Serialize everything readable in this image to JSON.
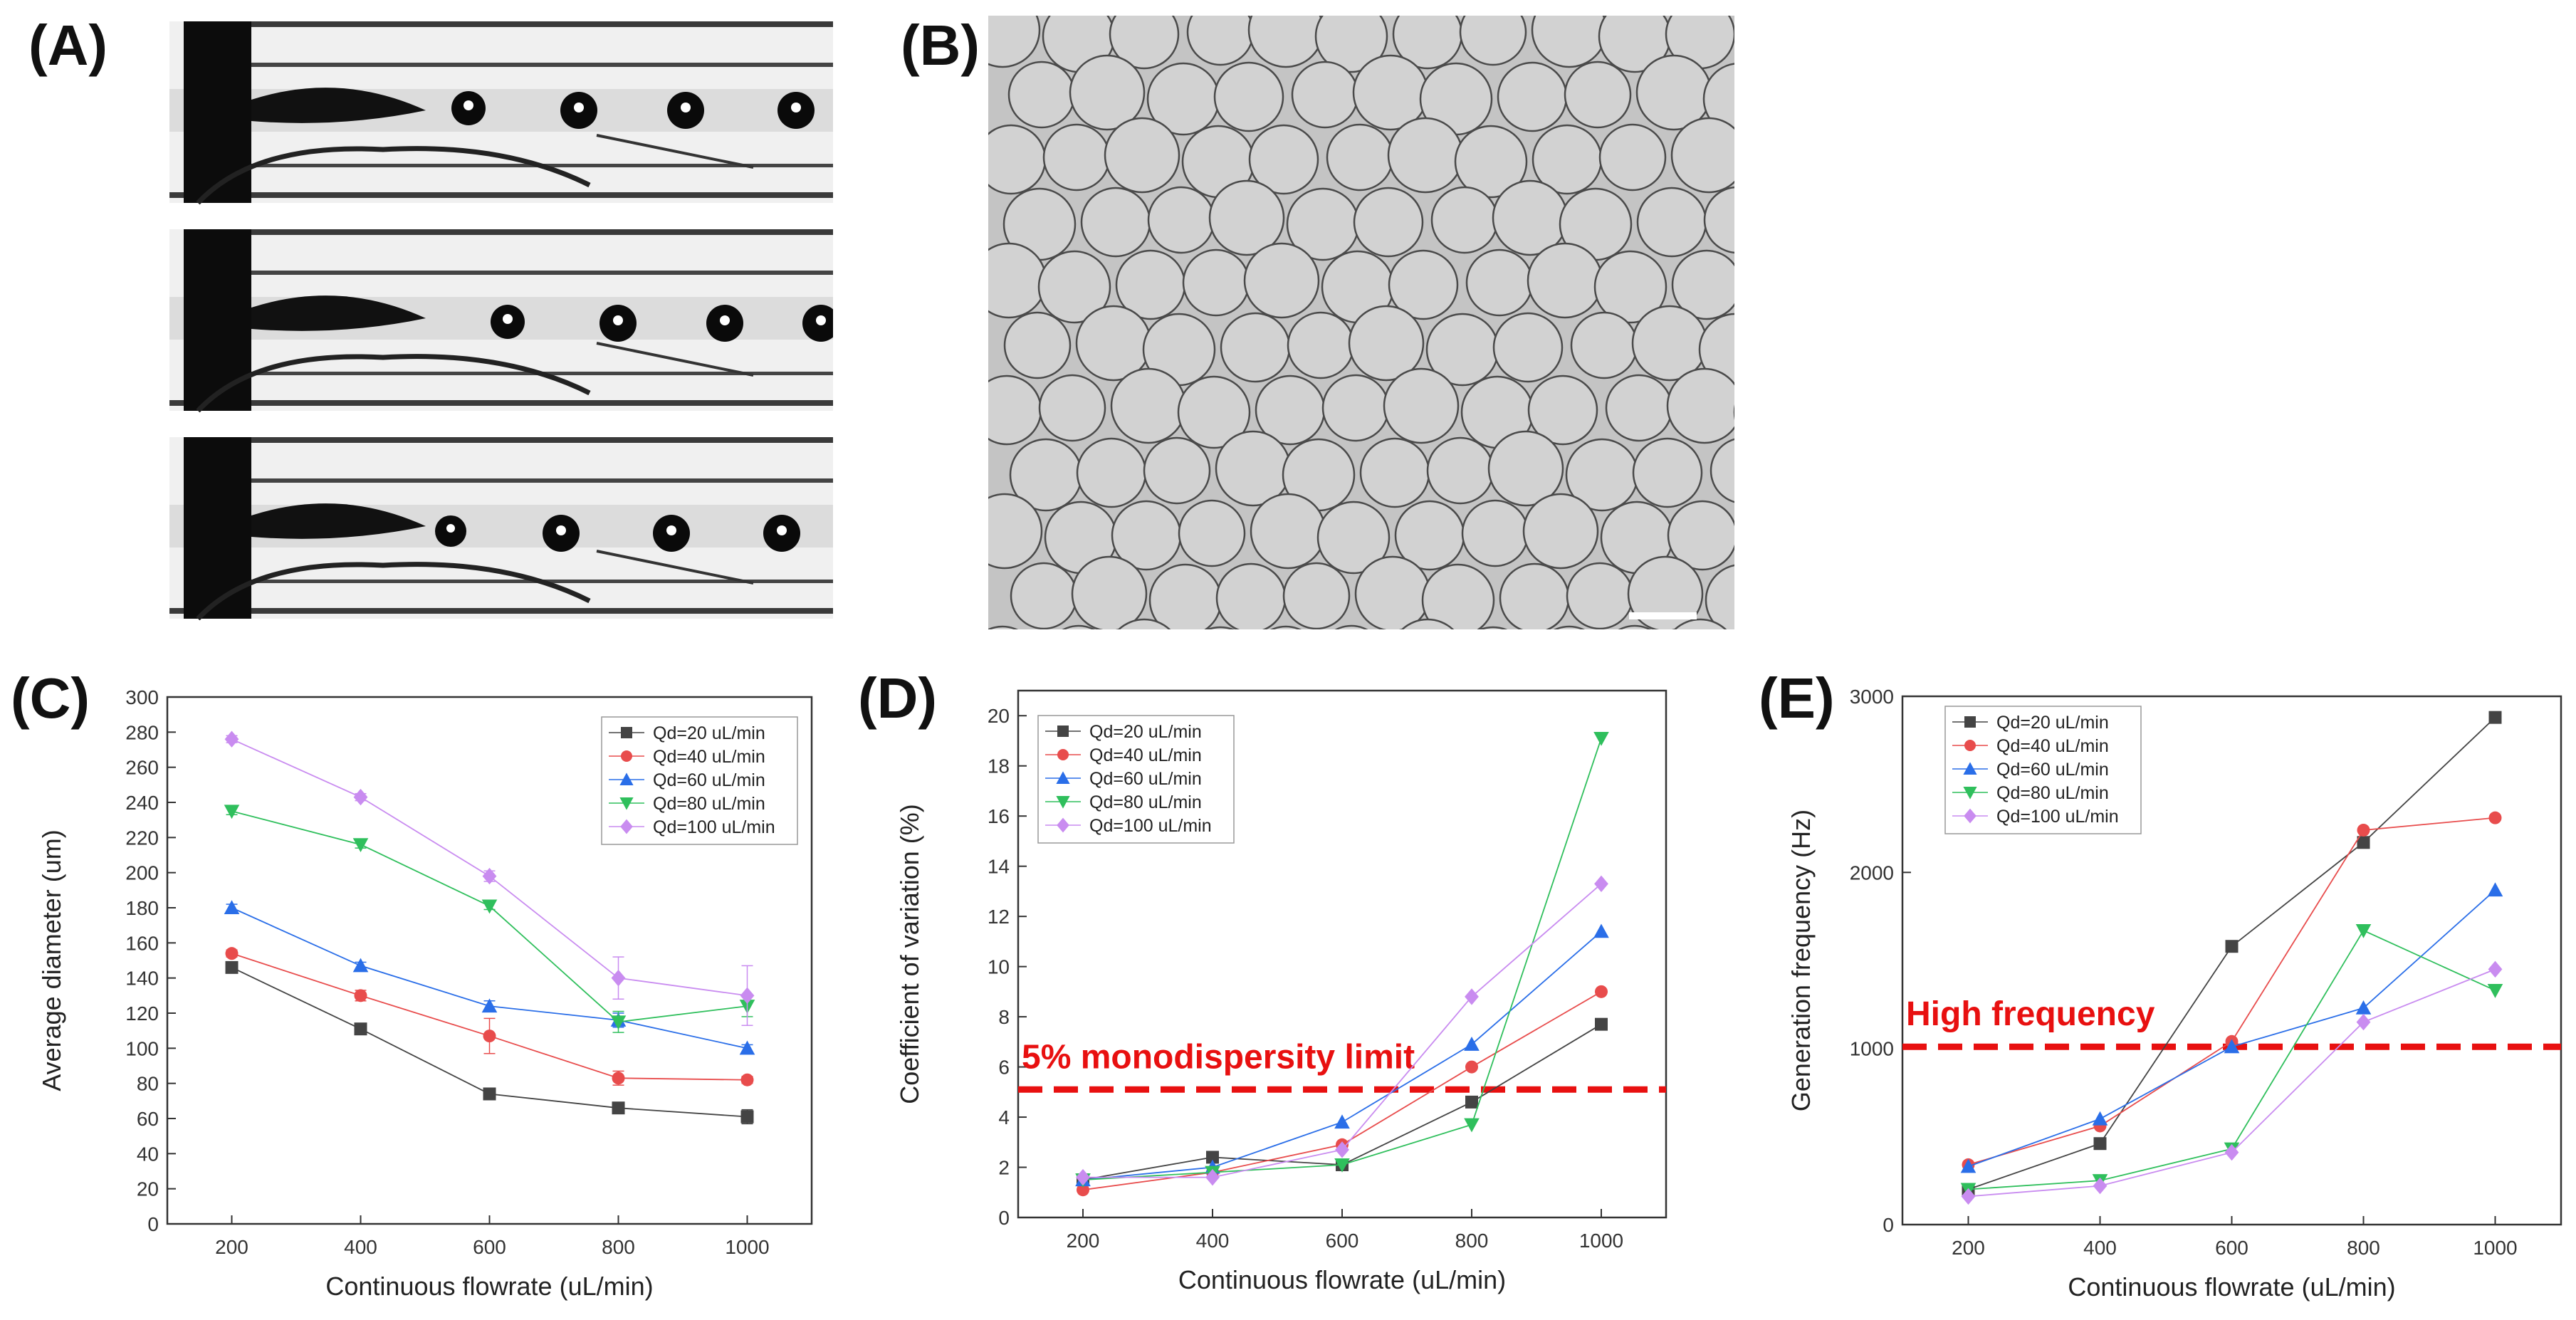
{
  "panels": {
    "a": "(A)",
    "b": "(B)",
    "c": "(C)",
    "d": "(D)",
    "e": "(E)"
  },
  "colors": {
    "qd20": "#444444",
    "qd40": "#e84c4c",
    "qd60": "#2a6ee8",
    "qd80": "#2fbf5c",
    "qd100": "#c98cf0",
    "threshold": "#e81010"
  },
  "chart_data": [
    {
      "id": "C",
      "type": "line",
      "xlabel": "Continuous flowrate (uL/min)",
      "ylabel": "Average diameter (um)",
      "categories": [
        200,
        400,
        600,
        800,
        1000
      ],
      "xlim": [
        100,
        1100
      ],
      "ylim": [
        0,
        300
      ],
      "yticks": [
        0,
        20,
        40,
        60,
        80,
        100,
        120,
        140,
        160,
        180,
        200,
        220,
        240,
        260,
        280,
        300
      ],
      "series": [
        {
          "name": "Qd=20 uL/min",
          "marker": "square",
          "color": "#444444",
          "values": [
            146,
            111,
            74,
            66,
            61
          ],
          "err": [
            2,
            2,
            2,
            2,
            4
          ]
        },
        {
          "name": "Qd=40 uL/min",
          "marker": "circle",
          "color": "#e84c4c",
          "values": [
            154,
            130,
            107,
            83,
            82
          ],
          "err": [
            2,
            3,
            10,
            4,
            2
          ]
        },
        {
          "name": "Qd=60 uL/min",
          "marker": "triangle",
          "color": "#2a6ee8",
          "values": [
            180,
            147,
            124,
            116,
            100
          ],
          "err": [
            2,
            2,
            3,
            4,
            2
          ]
        },
        {
          "name": "Qd=80 uL/min",
          "marker": "tri-down",
          "color": "#2fbf5c",
          "values": [
            235,
            216,
            181,
            115,
            124
          ],
          "err": [
            2,
            2,
            2,
            6,
            6
          ]
        },
        {
          "name": "Qd=100 uL/min",
          "marker": "diamond",
          "color": "#c98cf0",
          "values": [
            276,
            243,
            198,
            140,
            130
          ],
          "err": [
            2,
            2,
            3,
            12,
            17
          ]
        }
      ],
      "legend": "top-right"
    },
    {
      "id": "D",
      "type": "line",
      "xlabel": "Continuous flowrate (uL/min)",
      "ylabel": "Coefficient of variation (%)",
      "categories": [
        200,
        400,
        600,
        800,
        1000
      ],
      "xlim": [
        100,
        1100
      ],
      "ylim": [
        0,
        21
      ],
      "yticks": [
        0,
        2,
        4,
        6,
        8,
        10,
        12,
        14,
        16,
        18,
        20
      ],
      "series": [
        {
          "name": "Qd=20 uL/min",
          "marker": "square",
          "color": "#444444",
          "values": [
            1.5,
            2.4,
            2.1,
            4.6,
            7.7
          ]
        },
        {
          "name": "Qd=40 uL/min",
          "marker": "circle",
          "color": "#e84c4c",
          "values": [
            1.1,
            1.8,
            2.9,
            6.0,
            9.0
          ]
        },
        {
          "name": "Qd=60 uL/min",
          "marker": "triangle",
          "color": "#2a6ee8",
          "values": [
            1.5,
            2.0,
            3.8,
            6.9,
            11.4
          ]
        },
        {
          "name": "Qd=80 uL/min",
          "marker": "tri-down",
          "color": "#2fbf5c",
          "values": [
            1.5,
            1.8,
            2.1,
            3.7,
            19.1
          ]
        },
        {
          "name": "Qd=100 uL/min",
          "marker": "diamond",
          "color": "#c98cf0",
          "values": [
            1.6,
            1.6,
            2.7,
            8.8,
            13.3
          ]
        }
      ],
      "threshold": {
        "value": 5.1,
        "label": "5% monodispersity limit"
      },
      "legend": "top-left"
    },
    {
      "id": "E",
      "type": "line",
      "xlabel": "Continuous flowrate (uL/min)",
      "ylabel": "Generation frequency (Hz)",
      "categories": [
        200,
        400,
        600,
        800,
        1000
      ],
      "xlim": [
        100,
        1100
      ],
      "ylim": [
        0,
        3000
      ],
      "yticks": [
        0,
        1000,
        2000,
        3000
      ],
      "series": [
        {
          "name": "Qd=20 uL/min",
          "marker": "square",
          "color": "#444444",
          "values": [
            200,
            460,
            1580,
            2170,
            2880
          ]
        },
        {
          "name": "Qd=40 uL/min",
          "marker": "circle",
          "color": "#e84c4c",
          "values": [
            340,
            560,
            1040,
            2240,
            2310
          ]
        },
        {
          "name": "Qd=60 uL/min",
          "marker": "triangle",
          "color": "#2a6ee8",
          "values": [
            330,
            600,
            1010,
            1230,
            1900
          ]
        },
        {
          "name": "Qd=80 uL/min",
          "marker": "tri-down",
          "color": "#2fbf5c",
          "values": [
            200,
            250,
            430,
            1670,
            1330
          ]
        },
        {
          "name": "Qd=100 uL/min",
          "marker": "diamond",
          "color": "#c98cf0",
          "values": [
            160,
            220,
            410,
            1150,
            1450
          ]
        }
      ],
      "threshold": {
        "value": 1010,
        "label": "High frequency"
      },
      "legend": "top-left"
    }
  ]
}
